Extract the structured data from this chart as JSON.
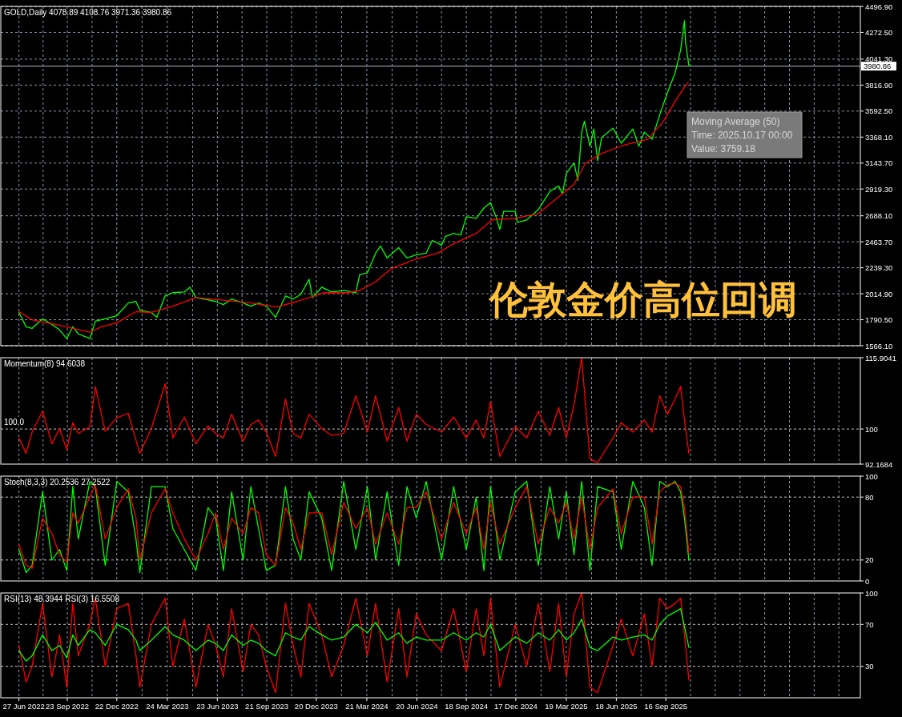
{
  "chart_data": [
    {
      "type": "line",
      "title": "GOLD,Daily  4078.89 4108.76 3971.36 3980.86",
      "series": [
        {
          "color": "#00ff00",
          "x": [
            "2022-06-27",
            "2022-07-10",
            "2022-07-21",
            "2022-08-09",
            "2022-08-26",
            "2022-09-09",
            "2022-09-22",
            "2022-10-03",
            "2022-10-13",
            "2022-11-03",
            "2022-11-13",
            "2022-12-01",
            "2022-12-22",
            "2023-01-12",
            "2023-01-26",
            "2023-02-02",
            "2023-02-23",
            "2023-03-05",
            "2023-03-20",
            "2023-04-03",
            "2023-04-24",
            "2023-05-04",
            "2023-05-15",
            "2023-06-06",
            "2023-06-20",
            "2023-07-04",
            "2023-07-19",
            "2023-08-09",
            "2023-08-23",
            "2023-09-06",
            "2023-09-20",
            "2023-10-07",
            "2023-10-25",
            "2023-11-08",
            "2023-11-22",
            "2023-12-07",
            "2023-12-13",
            "2023-12-30",
            "2024-01-17",
            "2024-02-08",
            "2024-03-01",
            "2024-03-08",
            "2024-03-22",
            "2024-04-06",
            "2024-04-15",
            "2024-04-27",
            "2024-05-18",
            "2024-06-02",
            "2024-06-19",
            "2024-07-07",
            "2024-07-18",
            "2024-08-04",
            "2024-08-11",
            "2024-08-26",
            "2024-09-08",
            "2024-09-18",
            "2024-10-06",
            "2024-10-20",
            "2024-11-01",
            "2024-11-11",
            "2024-11-18",
            "2024-11-25",
            "2024-12-16",
            "2024-12-20",
            "2025-01-06",
            "2025-01-27",
            "2025-02-17",
            "2025-03-05",
            "2025-03-12",
            "2025-03-19",
            "2025-04-02",
            "2025-04-09",
            "2025-04-16",
            "2025-04-21",
            "2025-05-01",
            "2025-05-08",
            "2025-05-15",
            "2025-05-22",
            "2025-06-12",
            "2025-06-27",
            "2025-07-18",
            "2025-07-29",
            "2025-08-08",
            "2025-08-22",
            "2025-09-05",
            "2025-09-19",
            "2025-10-03",
            "2025-10-13",
            "2025-10-20",
            "2025-10-22",
            "2025-10-24",
            "2025-10-28"
          ],
          "values": [
            1853,
            1730,
            1716,
            1798,
            1750,
            1702,
            1627,
            1730,
            1668,
            1627,
            1778,
            1798,
            1825,
            1935,
            1948,
            1873,
            1853,
            1811,
            1996,
            2024,
            2030,
            2071,
            1982,
            1962,
            1948,
            1921,
            1969,
            1935,
            1907,
            1935,
            1907,
            1811,
            1996,
            1969,
            2010,
            2140,
            1982,
            2071,
            2030,
            2044,
            2024,
            2181,
            2195,
            2365,
            2427,
            2324,
            2413,
            2324,
            2352,
            2365,
            2475,
            2434,
            2509,
            2536,
            2522,
            2680,
            2666,
            2755,
            2802,
            2680,
            2570,
            2727,
            2727,
            2632,
            2653,
            2741,
            2898,
            2946,
            2878,
            3055,
            3144,
            2994,
            3411,
            3506,
            3288,
            3438,
            3165,
            3363,
            3445,
            3315,
            3438,
            3288,
            3411,
            3349,
            3561,
            3752,
            3923,
            4121,
            4374,
            4189,
            4121,
            3984
          ]
        },
        {
          "color": "#ff0000",
          "x": [
            "2022-06-27",
            "2022-07-21",
            "2022-09-01",
            "2022-11-03",
            "2022-11-24",
            "2022-12-22",
            "2023-01-26",
            "2023-02-23",
            "2023-04-03",
            "2023-05-15",
            "2023-06-27",
            "2023-08-23",
            "2023-10-09",
            "2023-11-15",
            "2024-01-03",
            "2024-02-15",
            "2024-03-08",
            "2024-04-06",
            "2024-05-04",
            "2024-06-16",
            "2024-07-28",
            "2024-08-26",
            "2024-10-06",
            "2024-11-04",
            "2024-12-16",
            "2025-01-27",
            "2025-02-24",
            "2025-04-02",
            "2025-04-23",
            "2025-05-22",
            "2025-07-03",
            "2025-08-14",
            "2025-09-12",
            "2025-10-03",
            "2025-10-20",
            "2025-10-27"
          ],
          "values": [
            1860,
            1790,
            1750,
            1682,
            1730,
            1764,
            1860,
            1853,
            1907,
            1982,
            1962,
            1935,
            1900,
            1948,
            2024,
            2024,
            2044,
            2119,
            2229,
            2311,
            2365,
            2447,
            2536,
            2653,
            2666,
            2707,
            2816,
            2960,
            3144,
            3226,
            3301,
            3349,
            3506,
            3677,
            3800,
            3841
          ]
        }
      ],
      "xlim": [
        "2022-05-25",
        "2026-09-05"
      ],
      "xticks": [
        {
          "value": "2022-06-27",
          "label": null
        },
        {
          "value": "2022-08-10",
          "label": null
        },
        {
          "value": "2022-09-23",
          "label": null
        },
        {
          "value": "2022-11-07",
          "label": null
        },
        {
          "value": "2022-12-22",
          "label": null
        },
        {
          "value": "2023-02-06",
          "label": null
        },
        {
          "value": "2023-03-24",
          "label": null
        },
        {
          "value": "2023-05-09",
          "label": null
        },
        {
          "value": "2023-06-23",
          "label": null
        },
        {
          "value": "2023-08-07",
          "label": null
        },
        {
          "value": "2023-09-21",
          "label": null
        },
        {
          "value": "2023-11-05",
          "label": null
        },
        {
          "value": "2023-12-20",
          "label": null
        },
        {
          "value": "2024-02-04",
          "label": null
        },
        {
          "value": "2024-03-21",
          "label": null
        },
        {
          "value": "2024-05-06",
          "label": null
        },
        {
          "value": "2024-06-20",
          "label": null
        },
        {
          "value": "2024-08-04",
          "label": null
        },
        {
          "value": "2024-09-18",
          "label": null
        },
        {
          "value": "2024-11-02",
          "label": null
        },
        {
          "value": "2024-12-17",
          "label": null
        },
        {
          "value": "2025-02-01",
          "label": null
        },
        {
          "value": "2025-03-19",
          "label": null
        },
        {
          "value": "2025-05-04",
          "label": null
        },
        {
          "value": "2025-06-18",
          "label": null
        },
        {
          "value": "2025-08-02",
          "label": null
        },
        {
          "value": "2025-09-16",
          "label": null
        },
        {
          "value": "2025-10-31",
          "label": null
        },
        {
          "value": "2025-12-15",
          "label": null
        },
        {
          "value": "2026-01-29",
          "label": null
        },
        {
          "value": "2026-03-15",
          "label": null
        },
        {
          "value": "2026-04-29",
          "label": null
        },
        {
          "value": "2026-06-13",
          "label": null
        },
        {
          "value": "2026-07-28",
          "label": null
        }
      ],
      "ylim": [
        1566.1,
        4496.9
      ],
      "yticks": [
        {
          "value": 1566.1,
          "label": "1566.10"
        },
        {
          "value": 1790.5,
          "label": "1790.50"
        },
        {
          "value": 2014.9,
          "label": "2014.90"
        },
        {
          "value": 2239.3,
          "label": "2239.30"
        },
        {
          "value": 2463.7,
          "label": "2463.70"
        },
        {
          "value": 2688.1,
          "label": "2688.10"
        },
        {
          "value": 2919.3,
          "label": "2919.30"
        },
        {
          "value": 3143.7,
          "label": "3143.70"
        },
        {
          "value": 3368.1,
          "label": "3368.10"
        },
        {
          "value": 3592.5,
          "label": "3592.50"
        },
        {
          "value": 3816.9,
          "label": "3816.90"
        },
        {
          "value": 4041.3,
          "label": "4041.30"
        },
        {
          "value": 4272.5,
          "label": "4272.50"
        },
        {
          "value": 4496.9,
          "label": "4496.90"
        }
      ],
      "grid": true,
      "tick_labels": "y",
      "ref_lines": [
        {
          "axis": "y",
          "value": 3980.86,
          "label": "3980.86",
          "color": "#b4bcc8"
        }
      ],
      "annotations": [
        "Moving Average (50)",
        "Time: 2025.10.17 00:00",
        "Value: 3759.18",
        "伦敦金价高位回调"
      ]
    },
    {
      "type": "line",
      "title": "Momentum(8) 94.6038",
      "x": [
        "2022-06-27",
        "2022-07-10",
        "2022-07-21",
        "2022-08-09",
        "2022-08-26",
        "2022-09-09",
        "2022-09-22",
        "2022-10-03",
        "2022-10-13",
        "2022-11-03",
        "2022-11-13",
        "2022-12-01",
        "2022-12-22",
        "2023-01-12",
        "2023-01-26",
        "2023-02-02",
        "2023-02-23",
        "2023-03-20",
        "2023-04-03",
        "2023-04-24",
        "2023-05-15",
        "2023-06-06",
        "2023-06-20",
        "2023-07-04",
        "2023-07-19",
        "2023-08-09",
        "2023-08-23",
        "2023-09-06",
        "2023-09-20",
        "2023-10-07",
        "2023-10-25",
        "2023-11-08",
        "2023-11-22",
        "2023-12-07",
        "2023-12-30",
        "2024-01-17",
        "2024-02-08",
        "2024-03-01",
        "2024-03-22",
        "2024-04-06",
        "2024-04-27",
        "2024-05-18",
        "2024-06-02",
        "2024-06-19",
        "2024-07-07",
        "2024-08-04",
        "2024-08-26",
        "2024-09-18",
        "2024-10-06",
        "2024-10-20",
        "2024-11-01",
        "2024-11-18",
        "2024-12-16",
        "2025-01-06",
        "2025-01-27",
        "2025-02-17",
        "2025-03-05",
        "2025-03-19",
        "2025-04-02",
        "2025-04-16",
        "2025-05-01",
        "2025-05-15",
        "2025-06-12",
        "2025-06-27",
        "2025-07-18",
        "2025-08-08",
        "2025-08-22",
        "2025-09-05",
        "2025-09-19",
        "2025-10-03",
        "2025-10-13",
        "2025-10-20",
        "2025-10-28"
      ],
      "series": [
        {
          "color": "#ff0000",
          "values": [
            98.0,
            94.6,
            99.3,
            104.0,
            96.7,
            100.1,
            95.4,
            101.4,
            99.0,
            100.5,
            109.5,
            99.5,
            102.5,
            103.5,
            97.5,
            94.6,
            100.1,
            110.1,
            98.0,
            102.7,
            96.7,
            100.7,
            99.0,
            98.0,
            103.3,
            97.3,
            101.0,
            102.0,
            99.3,
            93.9,
            106.7,
            99.0,
            98.0,
            103.3,
            100.1,
            98.6,
            99.0,
            107.4,
            99.3,
            107.4,
            97.3,
            104.8,
            97.3,
            103.3,
            101.0,
            99.3,
            102.7,
            98.0,
            102.0,
            98.0,
            106.1,
            93.9,
            100.5,
            98.0,
            104.0,
            98.6,
            104.8,
            98.0,
            105.4,
            115.9,
            93.3,
            92.5,
            98.0,
            101.4,
            99.3,
            102.0,
            99.3,
            107.4,
            103.3,
            106.7,
            109.5,
            102.0,
            94.6
          ]
        }
      ],
      "xlim": [
        "2022-05-25",
        "2026-09-05"
      ],
      "xticks": [
        {
          "value": "2022-06-27",
          "label": null
        },
        {
          "value": "2022-08-10",
          "label": null
        },
        {
          "value": "2022-09-23",
          "label": null
        },
        {
          "value": "2022-11-07",
          "label": null
        },
        {
          "value": "2022-12-22",
          "label": null
        },
        {
          "value": "2023-02-06",
          "label": null
        },
        {
          "value": "2023-03-24",
          "label": null
        },
        {
          "value": "2023-05-09",
          "label": null
        },
        {
          "value": "2023-06-23",
          "label": null
        },
        {
          "value": "2023-08-07",
          "label": null
        },
        {
          "value": "2023-09-21",
          "label": null
        },
        {
          "value": "2023-11-05",
          "label": null
        },
        {
          "value": "2023-12-20",
          "label": null
        },
        {
          "value": "2024-02-04",
          "label": null
        },
        {
          "value": "2024-03-21",
          "label": null
        },
        {
          "value": "2024-05-06",
          "label": null
        },
        {
          "value": "2024-06-20",
          "label": null
        },
        {
          "value": "2024-08-04",
          "label": null
        },
        {
          "value": "2024-09-18",
          "label": null
        },
        {
          "value": "2024-11-02",
          "label": null
        },
        {
          "value": "2024-12-17",
          "label": null
        },
        {
          "value": "2025-02-01",
          "label": null
        },
        {
          "value": "2025-03-19",
          "label": null
        },
        {
          "value": "2025-05-04",
          "label": null
        },
        {
          "value": "2025-06-18",
          "label": null
        },
        {
          "value": "2025-08-02",
          "label": null
        },
        {
          "value": "2025-09-16",
          "label": null
        },
        {
          "value": "2025-10-31",
          "label": null
        },
        {
          "value": "2025-12-15",
          "label": null
        },
        {
          "value": "2026-01-29",
          "label": null
        },
        {
          "value": "2026-03-15",
          "label": null
        },
        {
          "value": "2026-04-29",
          "label": null
        },
        {
          "value": "2026-06-13",
          "label": null
        },
        {
          "value": "2026-07-28",
          "label": null
        }
      ],
      "ylim": [
        92.1684,
        115.9041
      ],
      "yticks": [
        92.1684,
        100,
        115.9041
      ],
      "grid": "x",
      "tick_labels": "y",
      "ref_lines": [
        {
          "axis": "y",
          "value": 100,
          "label": "100.0",
          "color": "#c8c8c8",
          "line_style": "dashed"
        }
      ]
    },
    {
      "type": "line",
      "title": "Stoch(8,3,3) 20.2536 27.2522",
      "x": [
        "2022-06-27",
        "2022-07-10",
        "2022-07-21",
        "2022-08-09",
        "2022-08-26",
        "2022-09-09",
        "2022-09-22",
        "2022-10-03",
        "2022-10-13",
        "2022-11-03",
        "2022-11-13",
        "2022-12-01",
        "2022-12-22",
        "2023-01-12",
        "2023-01-26",
        "2023-02-02",
        "2023-02-23",
        "2023-03-20",
        "2023-04-03",
        "2023-04-24",
        "2023-05-15",
        "2023-06-06",
        "2023-06-20",
        "2023-07-04",
        "2023-07-19",
        "2023-08-09",
        "2023-08-23",
        "2023-09-06",
        "2023-09-20",
        "2023-10-07",
        "2023-10-25",
        "2023-11-08",
        "2023-11-22",
        "2023-12-07",
        "2023-12-30",
        "2024-01-17",
        "2024-02-08",
        "2024-03-01",
        "2024-03-22",
        "2024-04-06",
        "2024-04-27",
        "2024-05-18",
        "2024-06-02",
        "2024-06-19",
        "2024-07-07",
        "2024-08-04",
        "2024-08-26",
        "2024-09-18",
        "2024-10-06",
        "2024-10-20",
        "2024-11-01",
        "2024-11-18",
        "2024-12-16",
        "2025-01-06",
        "2025-01-27",
        "2025-02-17",
        "2025-03-05",
        "2025-03-19",
        "2025-04-02",
        "2025-04-16",
        "2025-05-01",
        "2025-05-15",
        "2025-06-12",
        "2025-06-27",
        "2025-07-18",
        "2025-08-08",
        "2025-08-22",
        "2025-09-05",
        "2025-09-19",
        "2025-10-03",
        "2025-10-13",
        "2025-10-20",
        "2025-10-28"
      ],
      "series": [
        {
          "color": "#00ff00",
          "values": [
            30,
            8,
            15,
            85,
            20,
            30,
            10,
            90,
            40,
            95,
            90,
            15,
            95,
            85,
            40,
            8,
            90,
            90,
            50,
            30,
            10,
            70,
            60,
            10,
            85,
            20,
            90,
            50,
            10,
            15,
            90,
            40,
            20,
            85,
            60,
            10,
            95,
            30,
            90,
            20,
            85,
            15,
            90,
            60,
            95,
            20,
            90,
            30,
            80,
            10,
            90,
            20,
            85,
            95,
            15,
            90,
            40,
            85,
            25,
            95,
            10,
            90,
            85,
            30,
            95,
            70,
            15,
            95,
            90,
            95,
            85,
            60,
            20
          ]
        },
        {
          "color": "#ff0000",
          "values": [
            35,
            15,
            12,
            60,
            45,
            25,
            18,
            65,
            55,
            80,
            92,
            40,
            70,
            88,
            60,
            20,
            65,
            88,
            65,
            40,
            20,
            45,
            65,
            30,
            60,
            45,
            70,
            65,
            25,
            15,
            70,
            55,
            30,
            65,
            65,
            25,
            75,
            50,
            70,
            35,
            65,
            35,
            70,
            70,
            85,
            40,
            75,
            45,
            70,
            30,
            75,
            35,
            70,
            90,
            35,
            70,
            55,
            75,
            40,
            80,
            30,
            70,
            88,
            45,
            80,
            80,
            35,
            85,
            92,
            93,
            90,
            70,
            27
          ]
        }
      ],
      "xlim": [
        "2022-05-25",
        "2026-09-05"
      ],
      "xticks": [
        {
          "value": "2022-06-27",
          "label": null
        },
        {
          "value": "2022-08-10",
          "label": null
        },
        {
          "value": "2022-09-23",
          "label": null
        },
        {
          "value": "2022-11-07",
          "label": null
        },
        {
          "value": "2022-12-22",
          "label": null
        },
        {
          "value": "2023-02-06",
          "label": null
        },
        {
          "value": "2023-03-24",
          "label": null
        },
        {
          "value": "2023-05-09",
          "label": null
        },
        {
          "value": "2023-06-23",
          "label": null
        },
        {
          "value": "2023-08-07",
          "label": null
        },
        {
          "value": "2023-09-21",
          "label": null
        },
        {
          "value": "2023-11-05",
          "label": null
        },
        {
          "value": "2023-12-20",
          "label": null
        },
        {
          "value": "2024-02-04",
          "label": null
        },
        {
          "value": "2024-03-21",
          "label": null
        },
        {
          "value": "2024-05-06",
          "label": null
        },
        {
          "value": "2024-06-20",
          "label": null
        },
        {
          "value": "2024-08-04",
          "label": null
        },
        {
          "value": "2024-09-18",
          "label": null
        },
        {
          "value": "2024-11-02",
          "label": null
        },
        {
          "value": "2024-12-17",
          "label": null
        },
        {
          "value": "2025-02-01",
          "label": null
        },
        {
          "value": "2025-03-19",
          "label": null
        },
        {
          "value": "2025-05-04",
          "label": null
        },
        {
          "value": "2025-06-18",
          "label": null
        },
        {
          "value": "2025-08-02",
          "label": null
        },
        {
          "value": "2025-09-16",
          "label": null
        },
        {
          "value": "2025-10-31",
          "label": null
        },
        {
          "value": "2025-12-15",
          "label": null
        },
        {
          "value": "2026-01-29",
          "label": null
        },
        {
          "value": "2026-03-15",
          "label": null
        },
        {
          "value": "2026-04-29",
          "label": null
        },
        {
          "value": "2026-06-13",
          "label": null
        },
        {
          "value": "2026-07-28",
          "label": null
        }
      ],
      "ylim": [
        0,
        100
      ],
      "yticks": [
        0,
        20,
        80,
        100
      ],
      "grid": "x",
      "tick_labels": "y",
      "ref_lines": [
        {
          "axis": "y",
          "value": 20,
          "color": "#c8c8c8",
          "line_style": "dashed"
        },
        {
          "axis": "y",
          "value": 80,
          "color": "#c8c8c8",
          "line_style": "dashed"
        }
      ]
    },
    {
      "type": "line",
      "title": "RSI(13) 48.3944  RSI(3) 16.5508",
      "x": [
        "2022-06-27",
        "2022-07-10",
        "2022-07-21",
        "2022-08-09",
        "2022-08-26",
        "2022-09-09",
        "2022-09-22",
        "2022-10-03",
        "2022-10-13",
        "2022-11-03",
        "2022-11-13",
        "2022-12-01",
        "2022-12-22",
        "2023-01-12",
        "2023-01-26",
        "2023-02-02",
        "2023-02-23",
        "2023-03-20",
        "2023-04-03",
        "2023-04-24",
        "2023-05-15",
        "2023-06-06",
        "2023-06-20",
        "2023-07-04",
        "2023-07-19",
        "2023-08-09",
        "2023-08-23",
        "2023-09-06",
        "2023-09-20",
        "2023-10-07",
        "2023-10-25",
        "2023-11-08",
        "2023-11-22",
        "2023-12-07",
        "2023-12-30",
        "2024-01-17",
        "2024-02-08",
        "2024-03-01",
        "2024-03-22",
        "2024-04-06",
        "2024-04-27",
        "2024-05-18",
        "2024-06-02",
        "2024-06-19",
        "2024-07-07",
        "2024-08-04",
        "2024-08-26",
        "2024-09-18",
        "2024-10-06",
        "2024-10-20",
        "2024-11-01",
        "2024-11-18",
        "2024-12-16",
        "2025-01-06",
        "2025-01-27",
        "2025-02-17",
        "2025-03-05",
        "2025-03-19",
        "2025-04-02",
        "2025-04-16",
        "2025-05-01",
        "2025-05-15",
        "2025-06-12",
        "2025-06-27",
        "2025-07-18",
        "2025-08-08",
        "2025-08-22",
        "2025-09-05",
        "2025-09-19",
        "2025-10-03",
        "2025-10-13",
        "2025-10-20",
        "2025-10-28"
      ],
      "series": [
        {
          "color": "#ff0000",
          "values": [
            50,
            15,
            30,
            90,
            20,
            60,
            10,
            90,
            40,
            70,
            95,
            30,
            85,
            90,
            40,
            10,
            70,
            95,
            30,
            75,
            10,
            70,
            50,
            20,
            85,
            25,
            70,
            60,
            30,
            5,
            90,
            50,
            20,
            90,
            60,
            20,
            50,
            95,
            40,
            90,
            15,
            85,
            20,
            80,
            60,
            45,
            85,
            25,
            85,
            40,
            95,
            10,
            70,
            30,
            90,
            25,
            90,
            20,
            80,
            100,
            10,
            5,
            50,
            75,
            40,
            80,
            30,
            95,
            85,
            90,
            95,
            60,
            17
          ]
        },
        {
          "color": "#00ff00",
          "values": [
            45,
            35,
            40,
            60,
            45,
            50,
            38,
            60,
            50,
            65,
            62,
            50,
            70,
            65,
            55,
            45,
            55,
            68,
            60,
            55,
            45,
            55,
            52,
            45,
            60,
            50,
            55,
            52,
            45,
            40,
            62,
            58,
            55,
            68,
            60,
            55,
            58,
            70,
            62,
            72,
            55,
            62,
            52,
            58,
            55,
            55,
            62,
            55,
            62,
            58,
            70,
            45,
            58,
            52,
            62,
            55,
            65,
            55,
            62,
            75,
            48,
            45,
            58,
            55,
            58,
            60,
            55,
            70,
            78,
            82,
            85,
            68,
            48
          ]
        }
      ],
      "xlim": [
        "2022-05-25",
        "2026-09-05"
      ],
      "xticks": [
        {
          "value": "2022-06-27",
          "label": "27 Jun 2022"
        },
        {
          "value": "2022-08-10",
          "label": null
        },
        {
          "value": "2022-09-23",
          "label": "23 Sep 2022"
        },
        {
          "value": "2022-11-07",
          "label": null
        },
        {
          "value": "2022-12-22",
          "label": "22 Dec 2022"
        },
        {
          "value": "2023-02-06",
          "label": null
        },
        {
          "value": "2023-03-24",
          "label": "24 Mar 2023"
        },
        {
          "value": "2023-05-09",
          "label": null
        },
        {
          "value": "2023-06-23",
          "label": "23 Jun 2023"
        },
        {
          "value": "2023-08-07",
          "label": null
        },
        {
          "value": "2023-09-21",
          "label": "21 Sep 2023"
        },
        {
          "value": "2023-11-05",
          "label": null
        },
        {
          "value": "2023-12-20",
          "label": "20 Dec 2023"
        },
        {
          "value": "2024-02-04",
          "label": null
        },
        {
          "value": "2024-03-21",
          "label": "21 Mar 2024"
        },
        {
          "value": "2024-05-06",
          "label": null
        },
        {
          "value": "2024-06-20",
          "label": "20 Jun 2024"
        },
        {
          "value": "2024-08-04",
          "label": null
        },
        {
          "value": "2024-09-18",
          "label": "18 Sep 2024"
        },
        {
          "value": "2024-11-02",
          "label": null
        },
        {
          "value": "2024-12-17",
          "label": "17 Dec 2024"
        },
        {
          "value": "2025-02-01",
          "label": null
        },
        {
          "value": "2025-03-19",
          "label": "19 Mar 2025"
        },
        {
          "value": "2025-05-04",
          "label": null
        },
        {
          "value": "2025-06-18",
          "label": "18 Jun 2025"
        },
        {
          "value": "2025-08-02",
          "label": null
        },
        {
          "value": "2025-09-16",
          "label": "16 Sep 2025"
        },
        {
          "value": "2025-10-31",
          "label": null
        },
        {
          "value": "2025-12-15",
          "label": null
        },
        {
          "value": "2026-01-29",
          "label": null
        },
        {
          "value": "2026-03-15",
          "label": null
        },
        {
          "value": "2026-04-29",
          "label": null
        },
        {
          "value": "2026-06-13",
          "label": null
        },
        {
          "value": "2026-07-28",
          "label": null
        }
      ],
      "ylim": [
        0,
        100
      ],
      "yticks": [
        30,
        70,
        100
      ],
      "grid": "x",
      "ref_lines": [
        {
          "axis": "y",
          "value": 30,
          "color": "#c8c8c8",
          "line_style": "dashed"
        },
        {
          "axis": "y",
          "value": 70,
          "color": "#c8c8c8",
          "line_style": "dashed"
        }
      ]
    }
  ]
}
